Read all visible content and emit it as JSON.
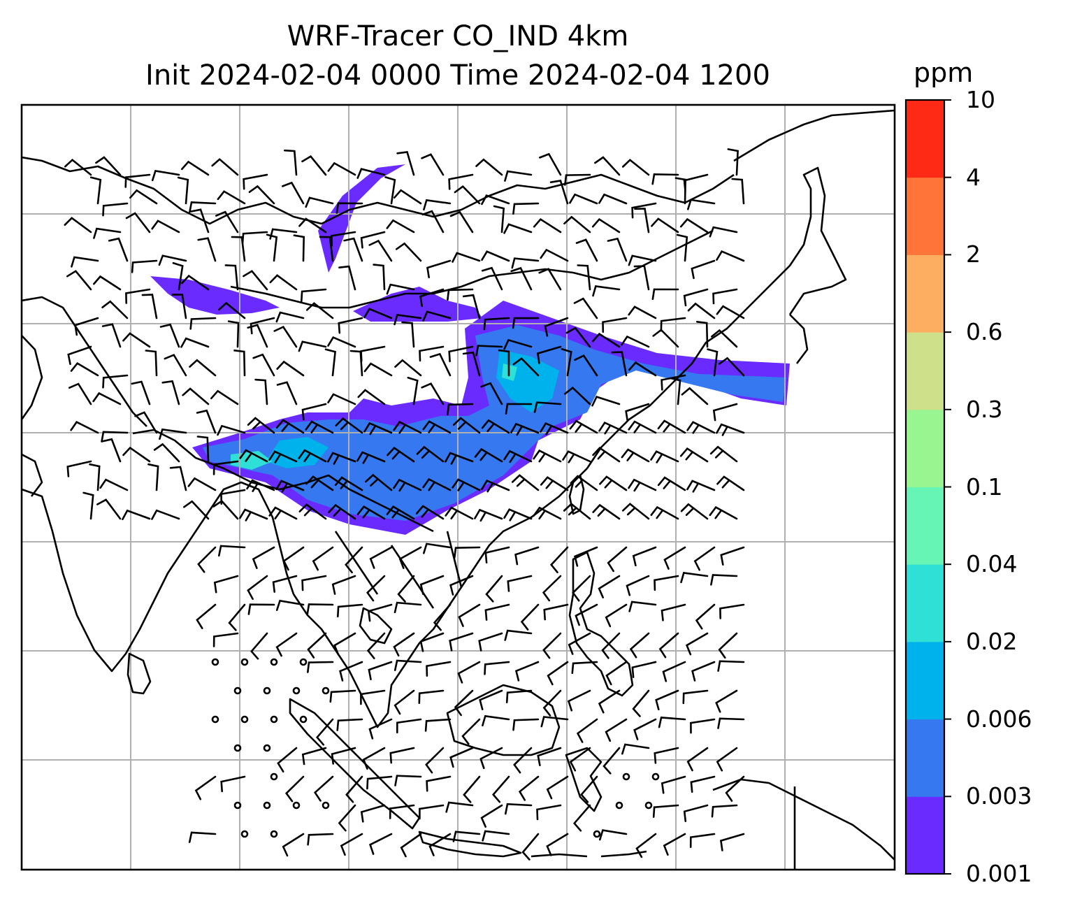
{
  "title": {
    "line1": "WRF-Tracer CO_IND 4km",
    "line2": "Init 2024-02-04 0000 Time 2024-02-04 1200"
  },
  "colorbar": {
    "unit": "ppm",
    "levels": [
      "0.001",
      "0.003",
      "0.006",
      "0.02",
      "0.04",
      "0.1",
      "0.3",
      "0.6",
      "2",
      "4",
      "10"
    ],
    "colors": [
      "#6a2bff",
      "#3578f0",
      "#00b2ec",
      "#2ee0d6",
      "#66f5b5",
      "#98f590",
      "#cfe08a",
      "#fdae61",
      "#ff7439",
      "#ff2a16"
    ]
  },
  "map": {
    "land_outline_color": "#000000",
    "grid_color": "#b0b0b0",
    "barb_color": "#000000"
  }
}
